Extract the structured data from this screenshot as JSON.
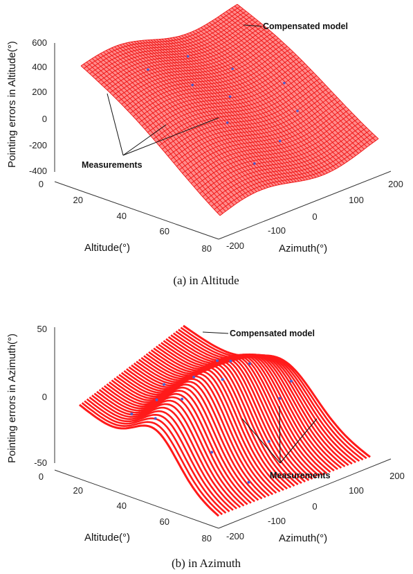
{
  "chart_data": [
    {
      "type": "surface",
      "caption": "(a) in Altitude",
      "zlabel": "Pointing errors in Altitude(°)",
      "xlabel": "Altitude(°)",
      "ylabel": "Azimuth(°)",
      "z_ticks": [
        "600",
        "400",
        "200",
        "0",
        "-200",
        "-400"
      ],
      "alt_ticks": [
        "0",
        "20",
        "40",
        "60",
        "80"
      ],
      "az_ticks": [
        "-200",
        "-100",
        "0",
        "100",
        "200"
      ],
      "zlim": [
        -400,
        600
      ],
      "alt_range": [
        0,
        80
      ],
      "az_range": [
        -200,
        200
      ],
      "annotations": {
        "model": "Compensated model",
        "measurements": "Measurements"
      },
      "surface_color": "#ff1a1a",
      "marker_color": "#3344aa"
    },
    {
      "type": "surface",
      "caption": "(b) in Azimuth",
      "zlabel": "Pointing errors in Azimuth(°)",
      "xlabel": "Altitude(°)",
      "ylabel": "Azimuth(°)",
      "z_ticks": [
        "50",
        "0",
        "-50"
      ],
      "alt_ticks": [
        "0",
        "20",
        "40",
        "60",
        "80"
      ],
      "az_ticks": [
        "-200",
        "-100",
        "0",
        "100",
        "200"
      ],
      "zlim": [
        -50,
        50
      ],
      "alt_range": [
        0,
        80
      ],
      "az_range": [
        -200,
        200
      ],
      "annotations": {
        "model": "Compensated model",
        "measurements": "Measurements"
      },
      "surface_color": "#ff1a1a",
      "marker_color": "#3344aa"
    }
  ]
}
